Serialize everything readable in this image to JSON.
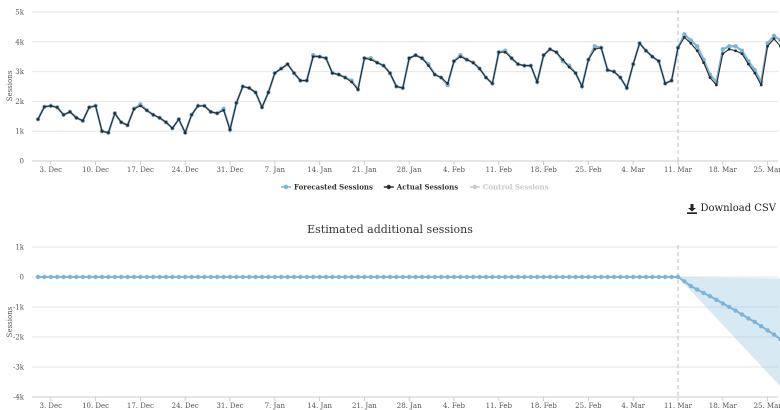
{
  "chart_data": [
    {
      "type": "line",
      "ylabel": "Sessions",
      "ylim": [
        0,
        5000
      ],
      "y_ticks": [
        "0",
        "1k",
        "2k",
        "3k",
        "4k",
        "5k"
      ],
      "x_ticks": [
        "3. Dec",
        "10. Dec",
        "17. Dec",
        "24. Dec",
        "31. Dec",
        "7. Jan",
        "14. Jan",
        "21. Jan",
        "28. Jan",
        "4. Feb",
        "11. Feb",
        "18. Feb",
        "25. Feb",
        "4. Mar",
        "11. Mar",
        "18. Mar",
        "25. Mar"
      ],
      "start_date": "Dec 1",
      "intervention_date": "11. Mar",
      "grid": true,
      "legend_position": "bottom",
      "legend": [
        {
          "name": "Forecasted Sessions",
          "color": "#7cb5d8"
        },
        {
          "name": "Actual Sessions",
          "color": "#2b2b2b"
        },
        {
          "name": "Control Sessions",
          "color": "#c8c8c8"
        }
      ],
      "series": [
        {
          "name": "Actual Sessions",
          "values": [
            1400,
            1820,
            1850,
            1800,
            1550,
            1650,
            1450,
            1350,
            1800,
            1850,
            1000,
            950,
            1600,
            1300,
            1200,
            1750,
            1850,
            1700,
            1550,
            1450,
            1300,
            1100,
            1400,
            950,
            1550,
            1850,
            1850,
            1650,
            1600,
            1700,
            1050,
            1950,
            2500,
            2450,
            2300,
            1800,
            2300,
            2950,
            3100,
            3250,
            2950,
            2700,
            2700,
            3500,
            3500,
            3450,
            2950,
            2900,
            2800,
            2650,
            2400,
            3450,
            3400,
            3300,
            3200,
            2950,
            2500,
            2450,
            3450,
            3550,
            3450,
            3200,
            2900,
            2800,
            2600,
            3350,
            3500,
            3400,
            3300,
            3100,
            2800,
            2600,
            3650,
            3650,
            3450,
            3250,
            3200,
            3200,
            2650,
            3550,
            3750,
            3650,
            3400,
            3150,
            2950,
            2500,
            3400,
            3750,
            3800,
            3050,
            3000,
            2800,
            2450,
            3250,
            3950,
            3700,
            3500,
            3350,
            2600,
            2700,
            3800,
            4150,
            3950,
            3700,
            3300,
            2800,
            2550,
            3600,
            3750,
            3700,
            3600,
            3250,
            2950,
            2550,
            3850,
            4100,
            3850
          ]
        },
        {
          "name": "Forecasted Sessions",
          "values": [
            1400,
            1820,
            1850,
            1800,
            1550,
            1650,
            1450,
            1350,
            1800,
            1850,
            1000,
            950,
            1600,
            1300,
            1200,
            1750,
            1900,
            1700,
            1550,
            1450,
            1300,
            1100,
            1400,
            950,
            1550,
            1850,
            1850,
            1650,
            1600,
            1750,
            1050,
            1950,
            2500,
            2450,
            2300,
            1800,
            2300,
            2950,
            3100,
            3250,
            2950,
            2700,
            2700,
            3550,
            3500,
            3450,
            2950,
            2900,
            2800,
            2700,
            2400,
            3450,
            3450,
            3300,
            3200,
            2950,
            2500,
            2450,
            3450,
            3550,
            3450,
            3250,
            2900,
            2800,
            2550,
            3350,
            3550,
            3400,
            3300,
            3100,
            2800,
            2600,
            3650,
            3700,
            3450,
            3250,
            3200,
            3200,
            2650,
            3550,
            3750,
            3650,
            3350,
            3200,
            2950,
            2500,
            3400,
            3850,
            3800,
            3050,
            3000,
            2800,
            2450,
            3250,
            3950,
            3700,
            3500,
            3350,
            2600,
            2700,
            3800,
            4250,
            4050,
            3850,
            3400,
            2900,
            2650,
            3750,
            3850,
            3850,
            3700,
            3350,
            3050,
            2650,
            3950,
            4200,
            4050
          ]
        }
      ]
    },
    {
      "type": "line",
      "title": "Estimated additional sessions",
      "ylabel": "Sessions",
      "ylim": [
        -4000,
        1000
      ],
      "y_ticks": [
        "1k",
        "0",
        "-1k",
        "-2k",
        "-3k",
        "-4k"
      ],
      "x_ticks": [
        "3. Dec",
        "10. Dec",
        "17. Dec",
        "24. Dec",
        "31. Dec",
        "7. Jan",
        "14. Jan",
        "21. Jan",
        "28. Jan",
        "4. Feb",
        "11. Feb",
        "18. Feb",
        "25. Feb",
        "4. Mar",
        "11. Mar",
        "18. Mar",
        "25. Mar"
      ],
      "grid": true,
      "intervention_date": "11. Mar",
      "series": [
        {
          "name": "Estimated additional sessions",
          "values_before_intervention": 0,
          "values_after_intervention": [
            -150,
            -300,
            -420,
            -530,
            -640,
            -760,
            -880,
            -1000,
            -1120,
            -1250,
            -1380,
            -1500,
            -1640,
            -1780,
            -1920,
            -2070
          ]
        }
      ],
      "confidence_band_end": [
        -3650,
        -50
      ]
    }
  ],
  "download": {
    "label": "Download CSV",
    "icon": "download-icon"
  }
}
